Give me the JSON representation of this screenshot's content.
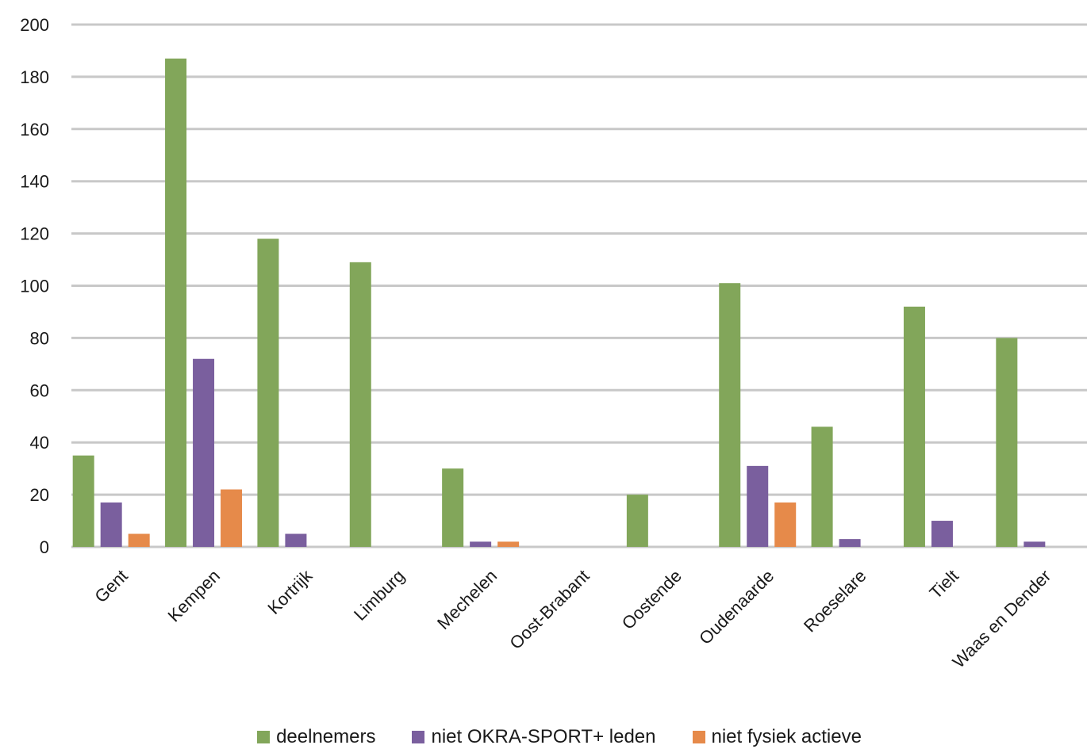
{
  "chart_data": {
    "type": "bar",
    "title": "",
    "xlabel": "",
    "ylabel": "",
    "ylim": [
      0,
      200
    ],
    "yticks": [
      0,
      20,
      40,
      60,
      80,
      100,
      120,
      140,
      160,
      180,
      200
    ],
    "grid": true,
    "legend_position": "bottom",
    "categories": [
      "Gent",
      "Kempen",
      "Kortrijk",
      "Limburg",
      "Mechelen",
      "Oost-Brabant",
      "Oostende",
      "Oudenaarde",
      "Roeselare",
      "Tielt",
      "Waas en Dender"
    ],
    "series": [
      {
        "name": "deelnemers",
        "color": "#82a65a",
        "values": [
          35,
          187,
          118,
          109,
          30,
          0,
          20,
          101,
          46,
          92,
          80
        ]
      },
      {
        "name": "niet OKRA-SPORT+ leden",
        "color": "#7a5f9e",
        "values": [
          17,
          72,
          5,
          0,
          2,
          0,
          0,
          31,
          3,
          10,
          2
        ]
      },
      {
        "name": "niet fysiek actieve",
        "color": "#e68a4a",
        "values": [
          5,
          22,
          0,
          0,
          2,
          0,
          0,
          17,
          0,
          0,
          0
        ]
      }
    ]
  }
}
